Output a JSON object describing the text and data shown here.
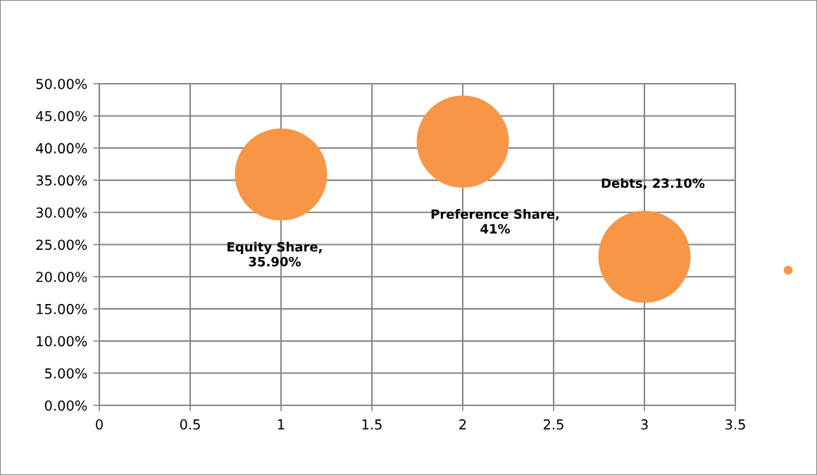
{
  "chart_data": {
    "type": "bubble",
    "x": [
      1,
      2,
      3
    ],
    "series": [
      {
        "color": "#f79646",
        "values": [
          35.9,
          41,
          23.1
        ],
        "sizes": [
          1,
          1,
          1
        ],
        "value_labels": [
          "Equity Share,\n35.90%",
          "Preference Share,\n41%",
          "Debts, 23.10%"
        ]
      }
    ],
    "xlim": [
      0,
      3.5
    ],
    "xticks": [
      0,
      0.5,
      1,
      1.5,
      2,
      2.5,
      3,
      3.5
    ],
    "ylim": [
      0,
      50
    ],
    "yticks": [
      {
        "value": 0,
        "label": "0.00%"
      },
      {
        "value": 5,
        "label": "5.00%"
      },
      {
        "value": 10,
        "label": "10.00%"
      },
      {
        "value": 15,
        "label": "15.00%"
      },
      {
        "value": 20,
        "label": "20.00%"
      },
      {
        "value": 25,
        "label": "25.00%"
      },
      {
        "value": 30,
        "label": "30.00%"
      },
      {
        "value": 35,
        "label": "35.00%"
      },
      {
        "value": 40,
        "label": "40.00%"
      },
      {
        "value": 45,
        "label": "45.00%"
      },
      {
        "value": 50,
        "label": "50.00%"
      }
    ],
    "grid": true
  }
}
